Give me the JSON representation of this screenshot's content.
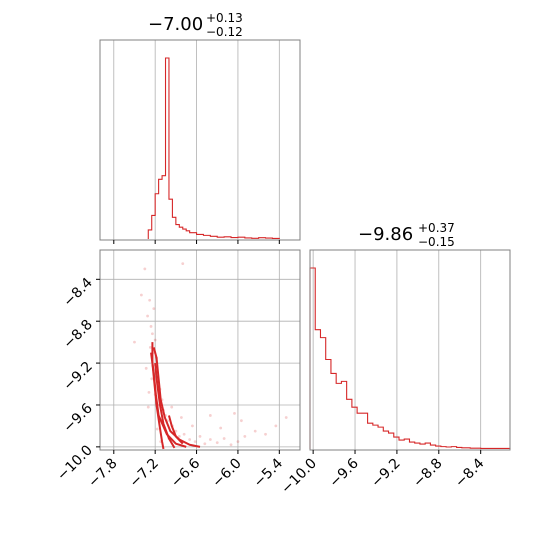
{
  "colors": {
    "series": "#d62728",
    "grid": "#b0b0b0",
    "frame": "#808080"
  },
  "chart_data": [
    {
      "type": "histogram",
      "panel": "marginal-param-1",
      "title": {
        "median": "−7.00",
        "plus": "+0.13",
        "minus": "−0.12"
      },
      "x_range": [
        -8.0,
        -5.1
      ],
      "xticks": [
        -7.8,
        -7.2,
        -6.6,
        -6.0,
        -5.4
      ],
      "grid": true,
      "bins": [
        {
          "x0": -7.3,
          "x1": -7.25,
          "density": 0.05
        },
        {
          "x0": -7.25,
          "x1": -7.2,
          "density": 0.13
        },
        {
          "x0": -7.2,
          "x1": -7.15,
          "density": 0.25
        },
        {
          "x0": -7.15,
          "x1": -7.1,
          "density": 0.33
        },
        {
          "x0": -7.1,
          "x1": -7.05,
          "density": 0.35
        },
        {
          "x0": -7.05,
          "x1": -7.0,
          "density": 1.0
        },
        {
          "x0": -7.0,
          "x1": -6.95,
          "density": 0.22
        },
        {
          "x0": -6.95,
          "x1": -6.9,
          "density": 0.12
        },
        {
          "x0": -6.9,
          "x1": -6.85,
          "density": 0.08
        },
        {
          "x0": -6.85,
          "x1": -6.8,
          "density": 0.065
        },
        {
          "x0": -6.8,
          "x1": -6.75,
          "density": 0.055
        },
        {
          "x0": -6.75,
          "x1": -6.7,
          "density": 0.045
        },
        {
          "x0": -6.7,
          "x1": -6.6,
          "density": 0.035
        },
        {
          "x0": -6.6,
          "x1": -6.5,
          "density": 0.025
        },
        {
          "x0": -6.5,
          "x1": -6.4,
          "density": 0.02
        },
        {
          "x0": -6.4,
          "x1": -6.3,
          "density": 0.015
        },
        {
          "x0": -6.3,
          "x1": -6.2,
          "density": 0.01
        },
        {
          "x0": -6.2,
          "x1": -6.1,
          "density": 0.012
        },
        {
          "x0": -6.1,
          "x1": -6.0,
          "density": 0.008
        },
        {
          "x0": -6.0,
          "x1": -5.9,
          "density": 0.01
        },
        {
          "x0": -5.9,
          "x1": -5.8,
          "density": 0.006
        },
        {
          "x0": -5.8,
          "x1": -5.7,
          "density": 0.004
        },
        {
          "x0": -5.7,
          "x1": -5.6,
          "density": 0.007
        },
        {
          "x0": -5.6,
          "x1": -5.5,
          "density": 0.005
        },
        {
          "x0": -5.5,
          "x1": -5.4,
          "density": 0.003
        }
      ]
    },
    {
      "type": "histogram",
      "panel": "marginal-param-2",
      "title": {
        "median": "−9.86",
        "plus": "+0.37",
        "minus": "−0.15"
      },
      "x_range": [
        -10.03,
        -8.12
      ],
      "xticks": [
        -10.0,
        -9.6,
        -9.2,
        -8.8,
        -8.4
      ],
      "grid": true,
      "bins": [
        {
          "x0": -10.03,
          "x1": -9.98,
          "density": 0.91
        },
        {
          "x0": -9.98,
          "x1": -9.93,
          "density": 0.6
        },
        {
          "x0": -9.93,
          "x1": -9.88,
          "density": 0.56
        },
        {
          "x0": -9.88,
          "x1": -9.83,
          "density": 0.45
        },
        {
          "x0": -9.83,
          "x1": -9.78,
          "density": 0.38
        },
        {
          "x0": -9.78,
          "x1": -9.73,
          "density": 0.33
        },
        {
          "x0": -9.73,
          "x1": -9.68,
          "density": 0.34
        },
        {
          "x0": -9.68,
          "x1": -9.63,
          "density": 0.25
        },
        {
          "x0": -9.63,
          "x1": -9.58,
          "density": 0.21
        },
        {
          "x0": -9.58,
          "x1": -9.53,
          "density": 0.18
        },
        {
          "x0": -9.53,
          "x1": -9.48,
          "density": 0.18
        },
        {
          "x0": -9.48,
          "x1": -9.43,
          "density": 0.13
        },
        {
          "x0": -9.43,
          "x1": -9.38,
          "density": 0.12
        },
        {
          "x0": -9.38,
          "x1": -9.33,
          "density": 0.11
        },
        {
          "x0": -9.33,
          "x1": -9.28,
          "density": 0.09
        },
        {
          "x0": -9.28,
          "x1": -9.23,
          "density": 0.08
        },
        {
          "x0": -9.23,
          "x1": -9.18,
          "density": 0.06
        },
        {
          "x0": -9.18,
          "x1": -9.13,
          "density": 0.045
        },
        {
          "x0": -9.13,
          "x1": -9.08,
          "density": 0.05
        },
        {
          "x0": -9.08,
          "x1": -9.03,
          "density": 0.035
        },
        {
          "x0": -9.03,
          "x1": -8.98,
          "density": 0.03
        },
        {
          "x0": -8.98,
          "x1": -8.93,
          "density": 0.025
        },
        {
          "x0": -8.93,
          "x1": -8.88,
          "density": 0.03
        },
        {
          "x0": -8.88,
          "x1": -8.83,
          "density": 0.02
        },
        {
          "x0": -8.83,
          "x1": -8.78,
          "density": 0.015
        },
        {
          "x0": -8.78,
          "x1": -8.73,
          "density": 0.012
        },
        {
          "x0": -8.73,
          "x1": -8.68,
          "density": 0.01
        },
        {
          "x0": -8.68,
          "x1": -8.63,
          "density": 0.012
        },
        {
          "x0": -8.63,
          "x1": -8.58,
          "density": 0.008
        },
        {
          "x0": -8.58,
          "x1": -8.5,
          "density": 0.006
        },
        {
          "x0": -8.5,
          "x1": -8.4,
          "density": 0.004
        },
        {
          "x0": -8.4,
          "x1": -8.12,
          "density": 0.003
        }
      ]
    },
    {
      "type": "scatter",
      "panel": "joint-param-1-vs-param-2",
      "x_range": [
        -8.0,
        -5.1
      ],
      "y_range": [
        -10.03,
        -8.12
      ],
      "xticks": [
        -7.8,
        -7.2,
        -6.6,
        -6.0,
        -5.4
      ],
      "yticks": [
        -10.0,
        -9.6,
        -9.2,
        -8.8,
        -8.4
      ],
      "grid": true,
      "points": [
        [
          -7.28,
          -8.6
        ],
        [
          -7.31,
          -8.75
        ],
        [
          -7.22,
          -8.68
        ],
        [
          -7.26,
          -8.85
        ],
        [
          -7.24,
          -8.92
        ],
        [
          -7.2,
          -8.98
        ],
        [
          -7.27,
          -9.05
        ],
        [
          -7.21,
          -9.1
        ],
        [
          -7.18,
          -9.15
        ],
        [
          -7.23,
          -9.22
        ],
        [
          -7.19,
          -9.3
        ],
        [
          -7.25,
          -9.35
        ],
        [
          -7.16,
          -9.4
        ],
        [
          -7.13,
          -9.45
        ],
        [
          -7.2,
          -9.5
        ],
        [
          -7.1,
          -9.55
        ],
        [
          -7.14,
          -9.6
        ],
        [
          -7.08,
          -9.65
        ],
        [
          -7.05,
          -9.7
        ],
        [
          -7.02,
          -9.75
        ],
        [
          -6.95,
          -9.8
        ],
        [
          -6.9,
          -9.85
        ],
        [
          -6.85,
          -9.9
        ],
        [
          -6.78,
          -9.88
        ],
        [
          -6.7,
          -9.93
        ],
        [
          -6.62,
          -9.95
        ],
        [
          -6.55,
          -9.9
        ],
        [
          -6.48,
          -9.97
        ],
        [
          -6.4,
          -9.93
        ],
        [
          -6.3,
          -9.96
        ],
        [
          -6.2,
          -9.92
        ],
        [
          -6.1,
          -9.98
        ],
        [
          -6.0,
          -9.95
        ],
        [
          -5.9,
          -9.9
        ],
        [
          -5.75,
          -9.85
        ],
        [
          -5.6,
          -9.88
        ],
        [
          -5.45,
          -9.8
        ],
        [
          -5.3,
          -9.72
        ],
        [
          -6.4,
          -9.7
        ],
        [
          -6.05,
          -9.68
        ],
        [
          -7.4,
          -8.55
        ],
        [
          -7.5,
          -9.0
        ],
        [
          -7.33,
          -9.25
        ],
        [
          -7.29,
          -9.48
        ],
        [
          -7.12,
          -9.95
        ],
        [
          -6.96,
          -9.62
        ],
        [
          -6.82,
          -9.72
        ],
        [
          -6.66,
          -9.8
        ],
        [
          -6.25,
          -9.82
        ],
        [
          -5.95,
          -9.75
        ],
        [
          -6.8,
          -8.25
        ],
        [
          -7.35,
          -8.3
        ],
        [
          -7.3,
          -9.62
        ],
        [
          -7.17,
          -9.83
        ],
        [
          -7.0,
          -9.92
        ]
      ],
      "contours": [
        [
          [
            -7.22,
            -9.05
          ],
          [
            -7.18,
            -9.15
          ],
          [
            -7.15,
            -9.35
          ],
          [
            -7.12,
            -9.55
          ],
          [
            -7.06,
            -9.72
          ],
          [
            -6.98,
            -9.85
          ],
          [
            -6.85,
            -9.93
          ],
          [
            -6.7,
            -9.98
          ],
          [
            -6.55,
            -10.0
          ]
        ],
        [
          [
            -7.24,
            -9.0
          ],
          [
            -7.24,
            -9.2
          ],
          [
            -7.21,
            -9.4
          ],
          [
            -7.18,
            -9.6
          ],
          [
            -7.14,
            -9.78
          ],
          [
            -7.1,
            -9.95
          ],
          [
            -7.08,
            -10.02
          ]
        ],
        [
          [
            -7.26,
            -9.1
          ],
          [
            -7.22,
            -9.3
          ],
          [
            -7.19,
            -9.5
          ],
          [
            -7.15,
            -9.7
          ],
          [
            -7.03,
            -9.88
          ],
          [
            -6.9,
            -9.97
          ],
          [
            -6.75,
            -10.0
          ]
        ],
        [
          [
            -7.2,
            -9.2
          ],
          [
            -7.17,
            -9.4
          ],
          [
            -7.13,
            -9.6
          ],
          [
            -7.08,
            -9.78
          ],
          [
            -7.0,
            -9.92
          ],
          [
            -6.92,
            -10.01
          ]
        ],
        [
          [
            -7.0,
            -9.7
          ],
          [
            -6.96,
            -9.8
          ],
          [
            -6.9,
            -9.9
          ],
          [
            -6.8,
            -9.97
          ]
        ]
      ]
    }
  ]
}
